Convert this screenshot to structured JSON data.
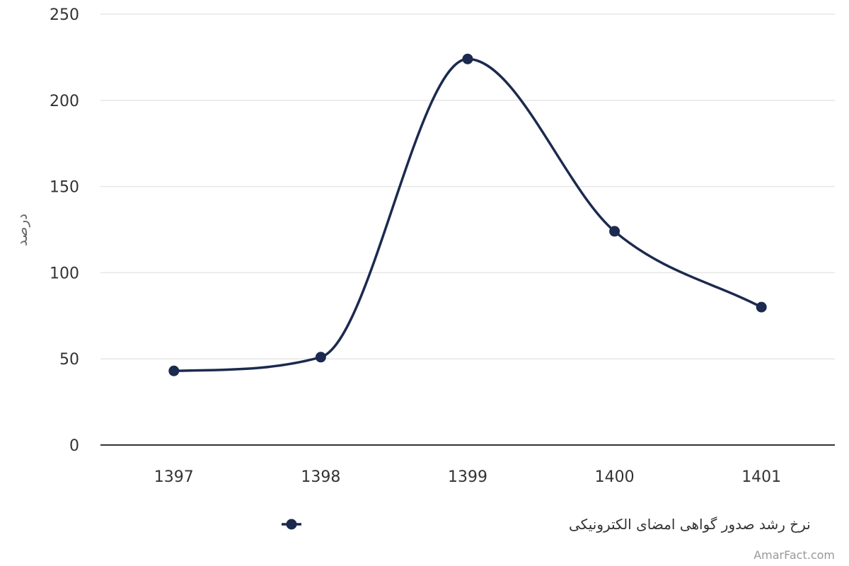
{
  "chart_data": {
    "type": "line",
    "categories": [
      "1397",
      "1398",
      "1399",
      "1400",
      "1401"
    ],
    "series": [
      {
        "name": "نرخ رشد صدور گواهی امضای الکترونیکی",
        "values": [
          43,
          51,
          224,
          124,
          80
        ],
        "color": "#1b2a4e"
      }
    ],
    "xlabel": "",
    "ylabel": "درصد",
    "ylim": [
      0,
      250
    ],
    "yticks": [
      0,
      50,
      100,
      150,
      200,
      250
    ],
    "grid": true,
    "smooth": true,
    "markers": true,
    "legend_position": "bottom-center"
  },
  "credit": "AmarFact.com",
  "colors": {
    "series": "#1b2a4e",
    "grid": "#e6e6e6",
    "axis": "#333333"
  }
}
